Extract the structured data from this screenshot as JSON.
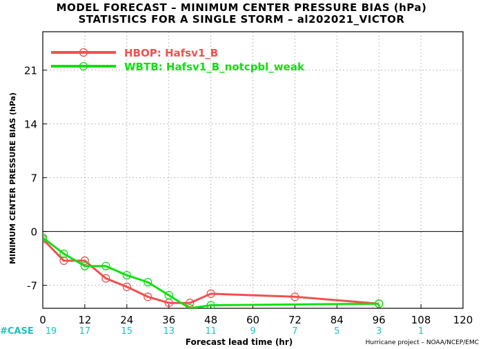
{
  "header": {
    "title": "MODEL FORECAST – MINIMUM CENTER PRESSURE BIAS (hPa)",
    "subtitle": "STATISTICS FOR A SINGLE STORM – al202021_VICTOR"
  },
  "footer": {
    "credit": "Hurricane project – NOAA/NCEP/EMC",
    "case_label": "#CASE"
  },
  "chart_data": {
    "type": "line",
    "xlabel": "Forecast lead time (hr)",
    "ylabel": "MINIMUM CENTER PRESSURE BIAS (hPa)",
    "xlim": [
      0,
      120
    ],
    "ylim": [
      -10,
      26
    ],
    "xticks": [
      0,
      12,
      24,
      36,
      48,
      60,
      72,
      84,
      96,
      108,
      120
    ],
    "yticks": [
      -7,
      0,
      7,
      14,
      21
    ],
    "grid": true,
    "zero_line": true,
    "legend_position": "top-left",
    "series": [
      {
        "name": "HBOP: Hafsv1_B",
        "color": "#f05050",
        "x": [
          0,
          6,
          12,
          18,
          24,
          30,
          36,
          42,
          48,
          72,
          96
        ],
        "y": [
          -1.0,
          -3.8,
          -3.8,
          -6.1,
          -7.2,
          -8.5,
          -9.3,
          -9.3,
          -8.1,
          -8.5,
          -9.4
        ]
      },
      {
        "name": "WBTB: Hafsv1_B_notcpbl_weak",
        "color": "#10e010",
        "x": [
          0,
          6,
          12,
          18,
          24,
          30,
          36,
          42,
          48,
          96
        ],
        "y": [
          -0.8,
          -2.9,
          -4.5,
          -4.5,
          -5.7,
          -6.6,
          -8.3,
          -10.0,
          -9.6,
          -9.4
        ]
      }
    ],
    "cases": {
      "x": [
        0,
        12,
        24,
        36,
        48,
        60,
        72,
        84,
        96,
        108
      ],
      "values": [
        "19",
        "17",
        "15",
        "13",
        "11",
        "9",
        "7",
        "5",
        "3",
        "1"
      ],
      "color": "#20c0c0"
    }
  }
}
